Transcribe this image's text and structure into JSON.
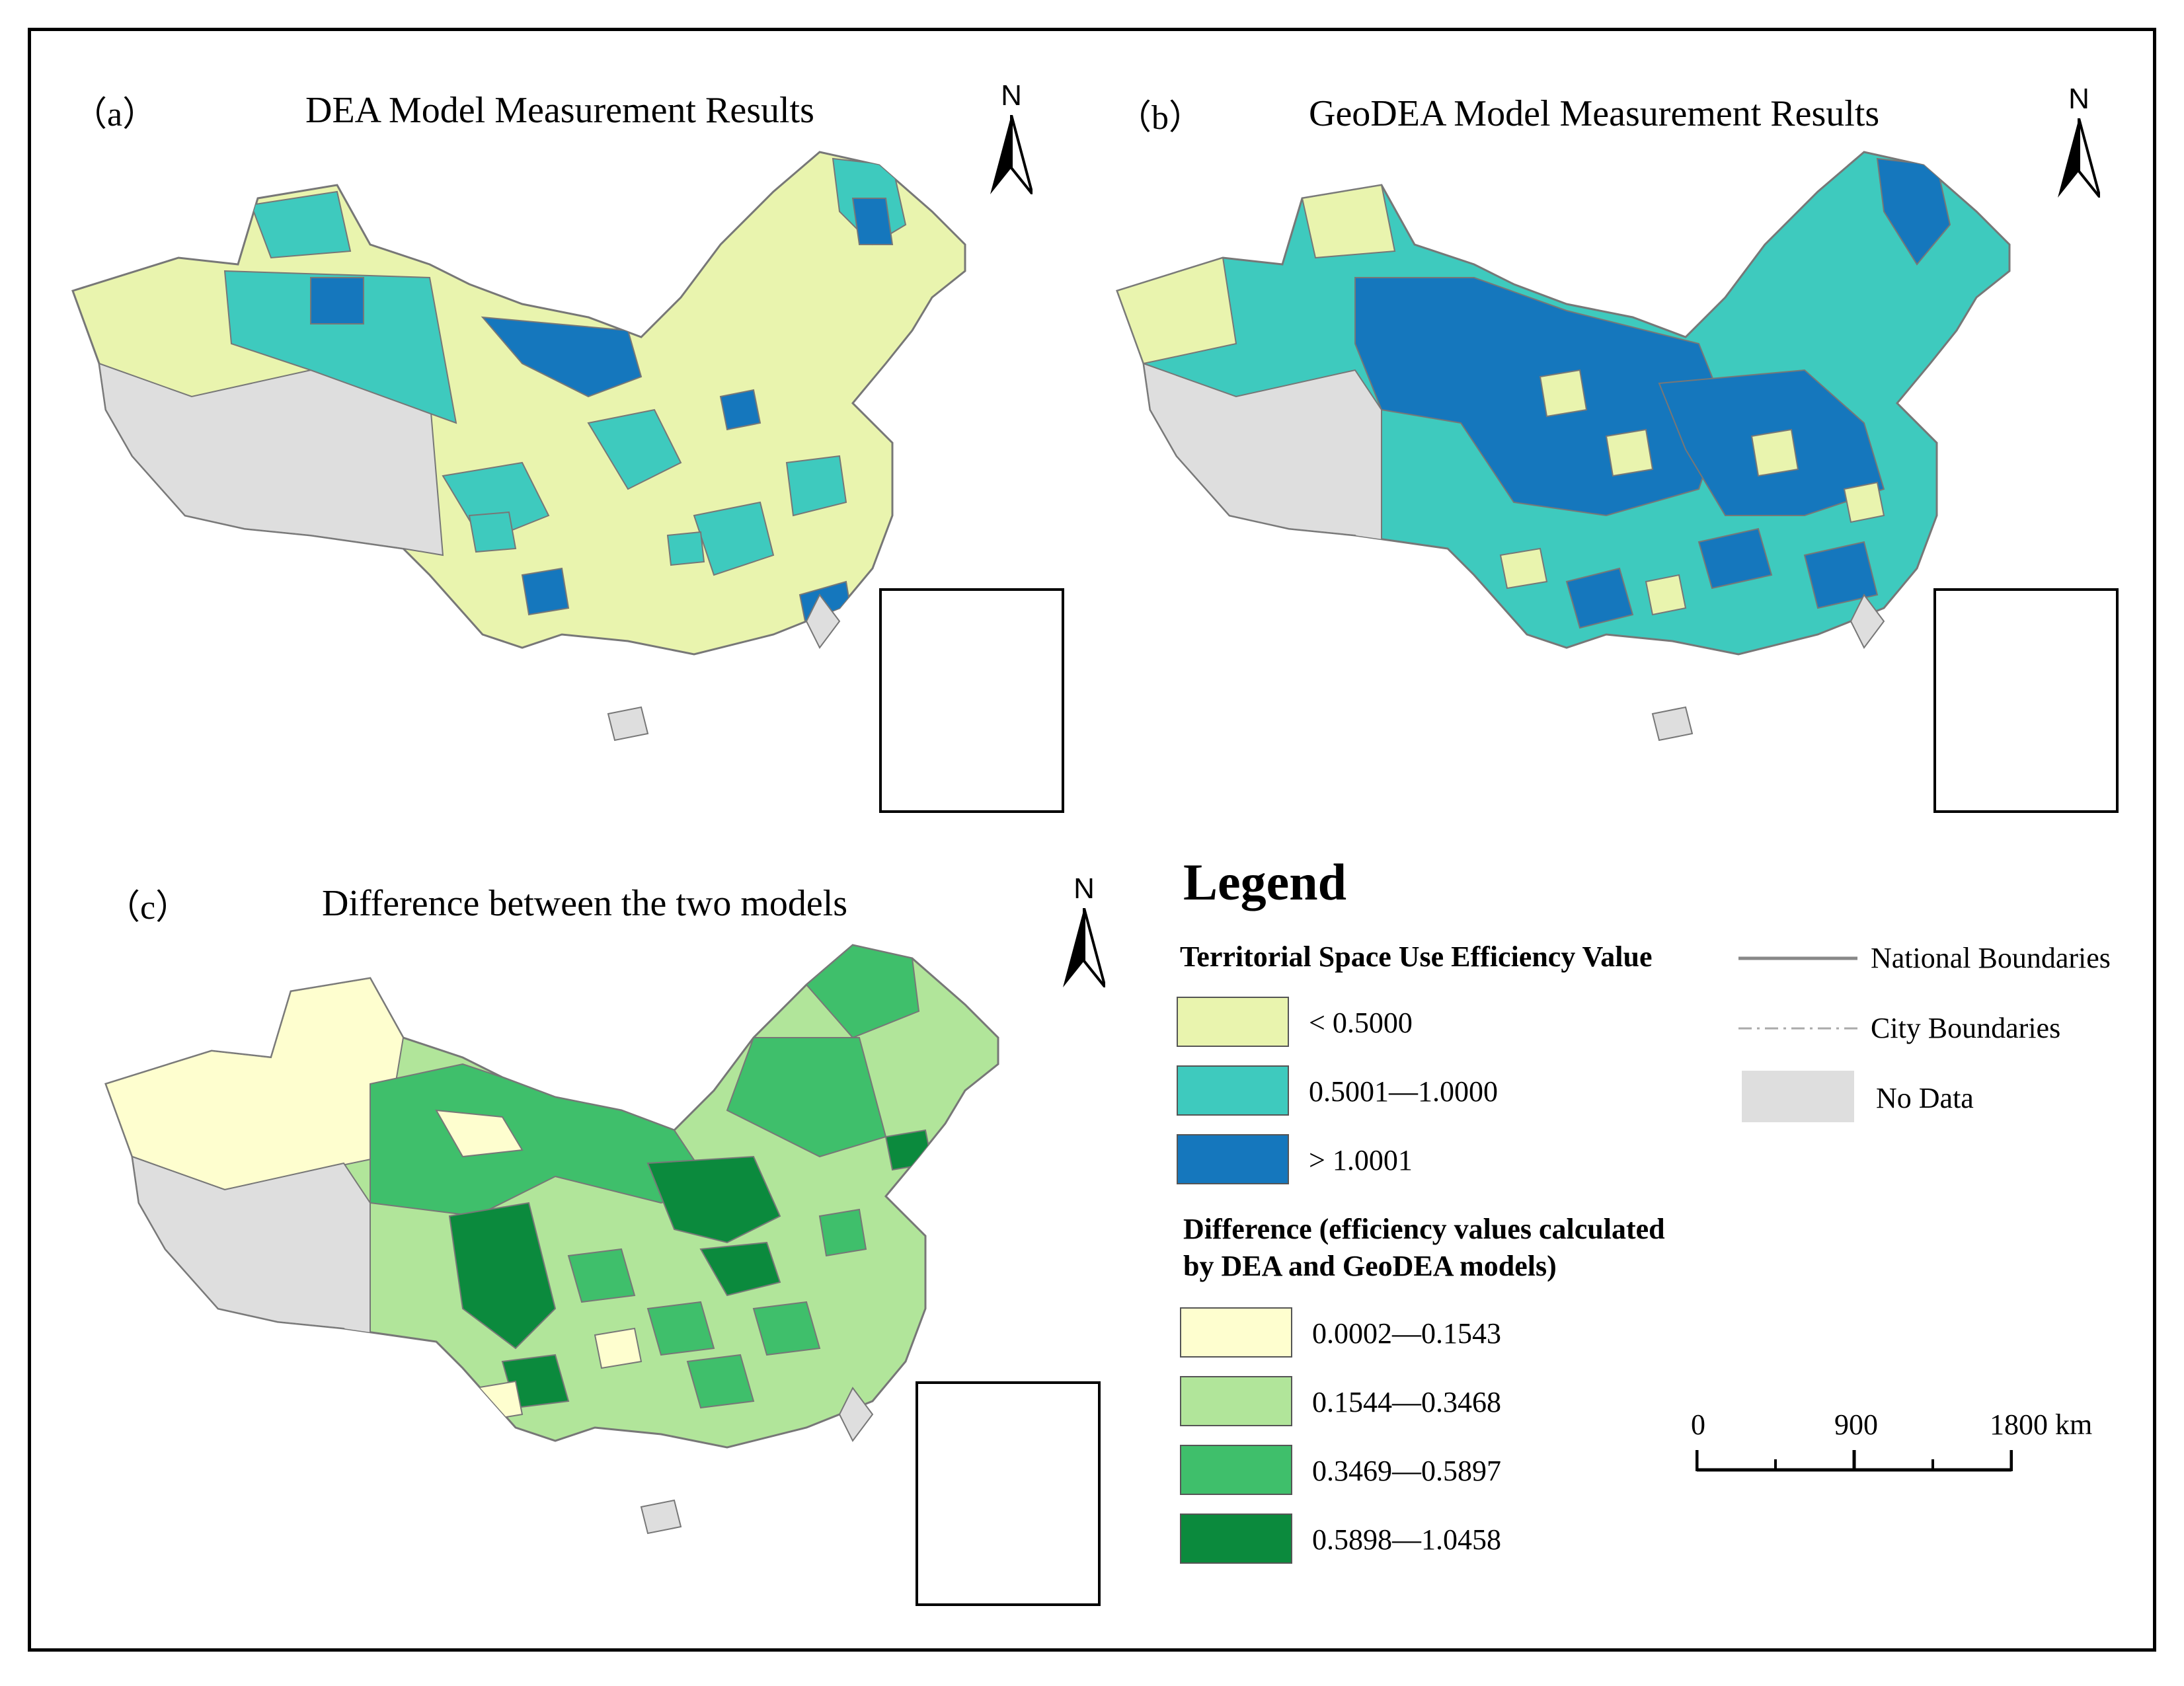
{
  "panels": [
    {
      "letter": "（a）",
      "title": "DEA Model Measurement Results"
    },
    {
      "letter": "（b）",
      "title": "GeoDEA Model Measurement Results"
    },
    {
      "letter": "（c）",
      "title": "Difference between the two models"
    }
  ],
  "north_label": "N",
  "legend": {
    "title": "Legend",
    "efficiency_title": "Territorial Space Use Efficiency Value",
    "efficiency_classes": [
      {
        "label": "< 0.5000",
        "color": "#e9f4ae"
      },
      {
        "label": "0.5001—1.0000",
        "color": "#3ecabe"
      },
      {
        "label": "> 1.0001",
        "color": "#1577bd"
      }
    ],
    "difference_title_line1": "Difference (efficiency values calculated",
    "difference_title_line2": "by DEA and GeoDEA models)",
    "difference_classes": [
      {
        "label": "0.0002—0.1543",
        "color": "#fefecf"
      },
      {
        "label": "0.1544—0.3468",
        "color": "#b1e59a"
      },
      {
        "label": "0.3469—0.5897",
        "color": "#3fbf6b"
      },
      {
        "label": "0.5898—1.0458",
        "color": "#0b8a3d"
      }
    ],
    "boundaries": [
      {
        "label": "National Boundaries",
        "style": "solid"
      },
      {
        "label": "City Boundaries",
        "style": "dashed"
      },
      {
        "label": "No Data",
        "color": "#dedede"
      }
    ]
  },
  "scale_bar": {
    "labels": [
      "0",
      "900",
      "1800 km"
    ]
  },
  "colors": {
    "no_data": "#dedede",
    "border": "#777777"
  }
}
